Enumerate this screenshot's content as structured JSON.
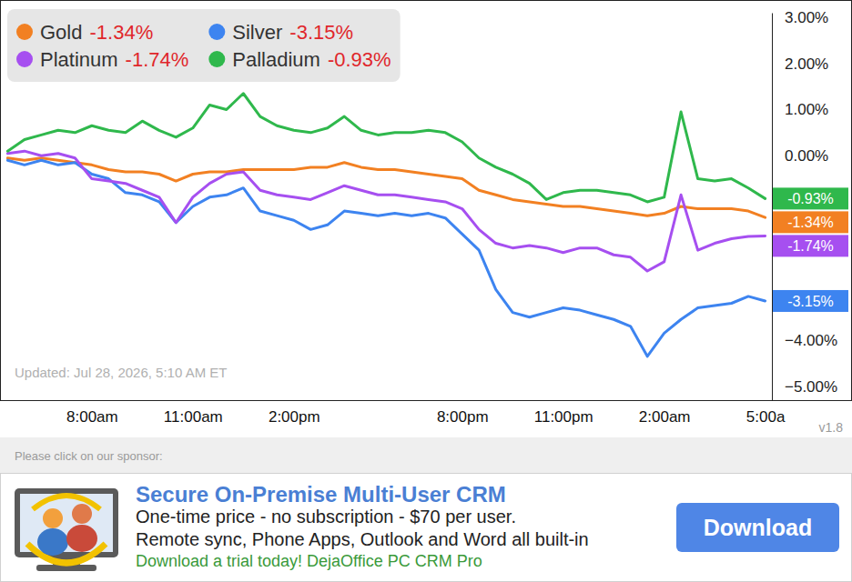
{
  "chart_data": {
    "type": "line",
    "x": [
      -2.5,
      -2,
      -1.5,
      -1,
      -0.5,
      0,
      0.5,
      1,
      1.5,
      2,
      2.5,
      3,
      3.5,
      4,
      4.5,
      5,
      5.5,
      6,
      6.5,
      7,
      7.5,
      8,
      8.5,
      9,
      9.5,
      10,
      10.5,
      11,
      11.5,
      12,
      12.5,
      13,
      13.5,
      14,
      14.5,
      15,
      15.5,
      16,
      16.5,
      17,
      17.5,
      18,
      18.5,
      19,
      19.5,
      20
    ],
    "xlim": [
      -2.7,
      20.2
    ],
    "xticks": [
      {
        "value": 0,
        "label": "8:00am"
      },
      {
        "value": 3,
        "label": "11:00am"
      },
      {
        "value": 6,
        "label": "2:00pm"
      },
      {
        "value": 11,
        "label": "8:00pm"
      },
      {
        "value": 14,
        "label": "11:00pm"
      },
      {
        "value": 17,
        "label": "2:00am"
      },
      {
        "value": 20,
        "label": "5:00a"
      }
    ],
    "ylim": [
      -5.3,
      3.1
    ],
    "yticks": [
      {
        "value": 3,
        "label": "3.00%"
      },
      {
        "value": 2,
        "label": "2.00%"
      },
      {
        "value": 1,
        "label": "1.00%"
      },
      {
        "value": 0,
        "label": "0.00%"
      },
      {
        "value": -4,
        "label": "−4.00%"
      },
      {
        "value": -5,
        "label": "−5.00%"
      }
    ],
    "legend": "top-left",
    "annotations": [
      "Updated: Jul 28, 2026, 5:10 AM ET",
      "v1.8"
    ],
    "series": [
      {
        "name": "Gold",
        "color": "#f28022",
        "values": [
          -0.05,
          -0.1,
          -0.05,
          -0.1,
          -0.15,
          -0.2,
          -0.3,
          -0.35,
          -0.35,
          -0.4,
          -0.55,
          -0.4,
          -0.35,
          -0.35,
          -0.3,
          -0.3,
          -0.3,
          -0.3,
          -0.25,
          -0.25,
          -0.15,
          -0.25,
          -0.3,
          -0.3,
          -0.35,
          -0.4,
          -0.45,
          -0.5,
          -0.75,
          -0.85,
          -0.95,
          -1.0,
          -1.05,
          -1.1,
          -1.1,
          -1.15,
          -1.2,
          -1.25,
          -1.3,
          -1.25,
          -1.1,
          -1.15,
          -1.15,
          -1.15,
          -1.2,
          -1.34
        ],
        "value_labels": [
          null,
          null,
          null,
          null,
          null,
          null,
          null,
          null,
          null,
          null,
          null,
          null,
          null,
          null,
          null,
          null,
          null,
          null,
          null,
          null,
          null,
          null,
          null,
          null,
          null,
          null,
          null,
          null,
          null,
          null,
          null,
          null,
          null,
          null,
          null,
          null,
          null,
          null,
          null,
          null,
          null,
          null,
          null,
          null,
          null,
          "-1.34%"
        ]
      },
      {
        "name": "Silver",
        "color": "#3d84f0",
        "values": [
          -0.1,
          -0.2,
          -0.1,
          -0.2,
          -0.15,
          -0.4,
          -0.5,
          -0.8,
          -0.85,
          -1.0,
          -1.45,
          -1.1,
          -0.9,
          -0.85,
          -0.7,
          -1.2,
          -1.3,
          -1.4,
          -1.6,
          -1.5,
          -1.2,
          -1.25,
          -1.3,
          -1.25,
          -1.3,
          -1.25,
          -1.35,
          -1.7,
          -2.05,
          -2.9,
          -3.4,
          -3.5,
          -3.4,
          -3.3,
          -3.35,
          -3.45,
          -3.55,
          -3.7,
          -4.35,
          -3.85,
          -3.55,
          -3.3,
          -3.25,
          -3.2,
          -3.05,
          -3.15
        ],
        "value_labels": [
          null,
          null,
          null,
          null,
          null,
          null,
          null,
          null,
          null,
          null,
          null,
          null,
          null,
          null,
          null,
          null,
          null,
          null,
          null,
          null,
          null,
          null,
          null,
          null,
          null,
          null,
          null,
          null,
          null,
          null,
          null,
          null,
          null,
          null,
          null,
          null,
          null,
          null,
          null,
          null,
          null,
          null,
          null,
          null,
          null,
          "-3.15%"
        ]
      },
      {
        "name": "Platinum",
        "color": "#a64ff0",
        "values": [
          0.05,
          0.1,
          0,
          0.05,
          -0.05,
          -0.5,
          -0.55,
          -0.6,
          -0.75,
          -0.9,
          -1.45,
          -0.9,
          -0.6,
          -0.4,
          -0.35,
          -0.75,
          -0.85,
          -0.9,
          -0.95,
          -0.8,
          -0.65,
          -0.75,
          -0.85,
          -0.85,
          -0.9,
          -0.95,
          -1.0,
          -1.15,
          -1.6,
          -1.9,
          -2.0,
          -1.95,
          -2.0,
          -2.1,
          -2.0,
          -2.0,
          -2.15,
          -2.2,
          -2.5,
          -2.3,
          -0.85,
          -2.05,
          -1.9,
          -1.8,
          -1.75,
          -1.74
        ],
        "value_labels": [
          null,
          null,
          null,
          null,
          null,
          null,
          null,
          null,
          null,
          null,
          null,
          null,
          null,
          null,
          null,
          null,
          null,
          null,
          null,
          null,
          null,
          null,
          null,
          null,
          null,
          null,
          null,
          null,
          null,
          null,
          null,
          null,
          null,
          null,
          null,
          null,
          null,
          null,
          null,
          null,
          null,
          null,
          null,
          null,
          null,
          "-1.74%"
        ]
      },
      {
        "name": "Palladium",
        "color": "#2fb84c",
        "values": [
          0.1,
          0.35,
          0.45,
          0.55,
          0.5,
          0.65,
          0.55,
          0.5,
          0.75,
          0.55,
          0.4,
          0.6,
          1.1,
          1.0,
          1.35,
          0.85,
          0.65,
          0.55,
          0.5,
          0.6,
          0.85,
          0.55,
          0.45,
          0.5,
          0.5,
          0.55,
          0.5,
          0.3,
          -0.05,
          -0.25,
          -0.4,
          -0.6,
          -0.95,
          -0.8,
          -0.75,
          -0.75,
          -0.8,
          -0.85,
          -1.0,
          -0.9,
          0.95,
          -0.5,
          -0.55,
          -0.5,
          -0.7,
          -0.93
        ],
        "value_labels": [
          null,
          null,
          null,
          null,
          null,
          null,
          null,
          null,
          null,
          null,
          null,
          null,
          null,
          null,
          null,
          null,
          null,
          null,
          null,
          null,
          null,
          null,
          null,
          null,
          null,
          null,
          null,
          null,
          null,
          null,
          null,
          null,
          null,
          null,
          null,
          null,
          null,
          null,
          null,
          null,
          null,
          null,
          null,
          null,
          null,
          "-0.93%"
        ]
      }
    ]
  },
  "sponsor": {
    "prompt": "Please click on our sponsor:",
    "title": "Secure On-Premise Multi-User CRM",
    "lines": [
      "One-time price - no subscription - $70 per user.",
      "Remote sync, Phone Apps, Outlook and Word all built-in"
    ],
    "tagline": "Download a trial today! DejaOffice PC CRM Pro",
    "button": "Download"
  }
}
